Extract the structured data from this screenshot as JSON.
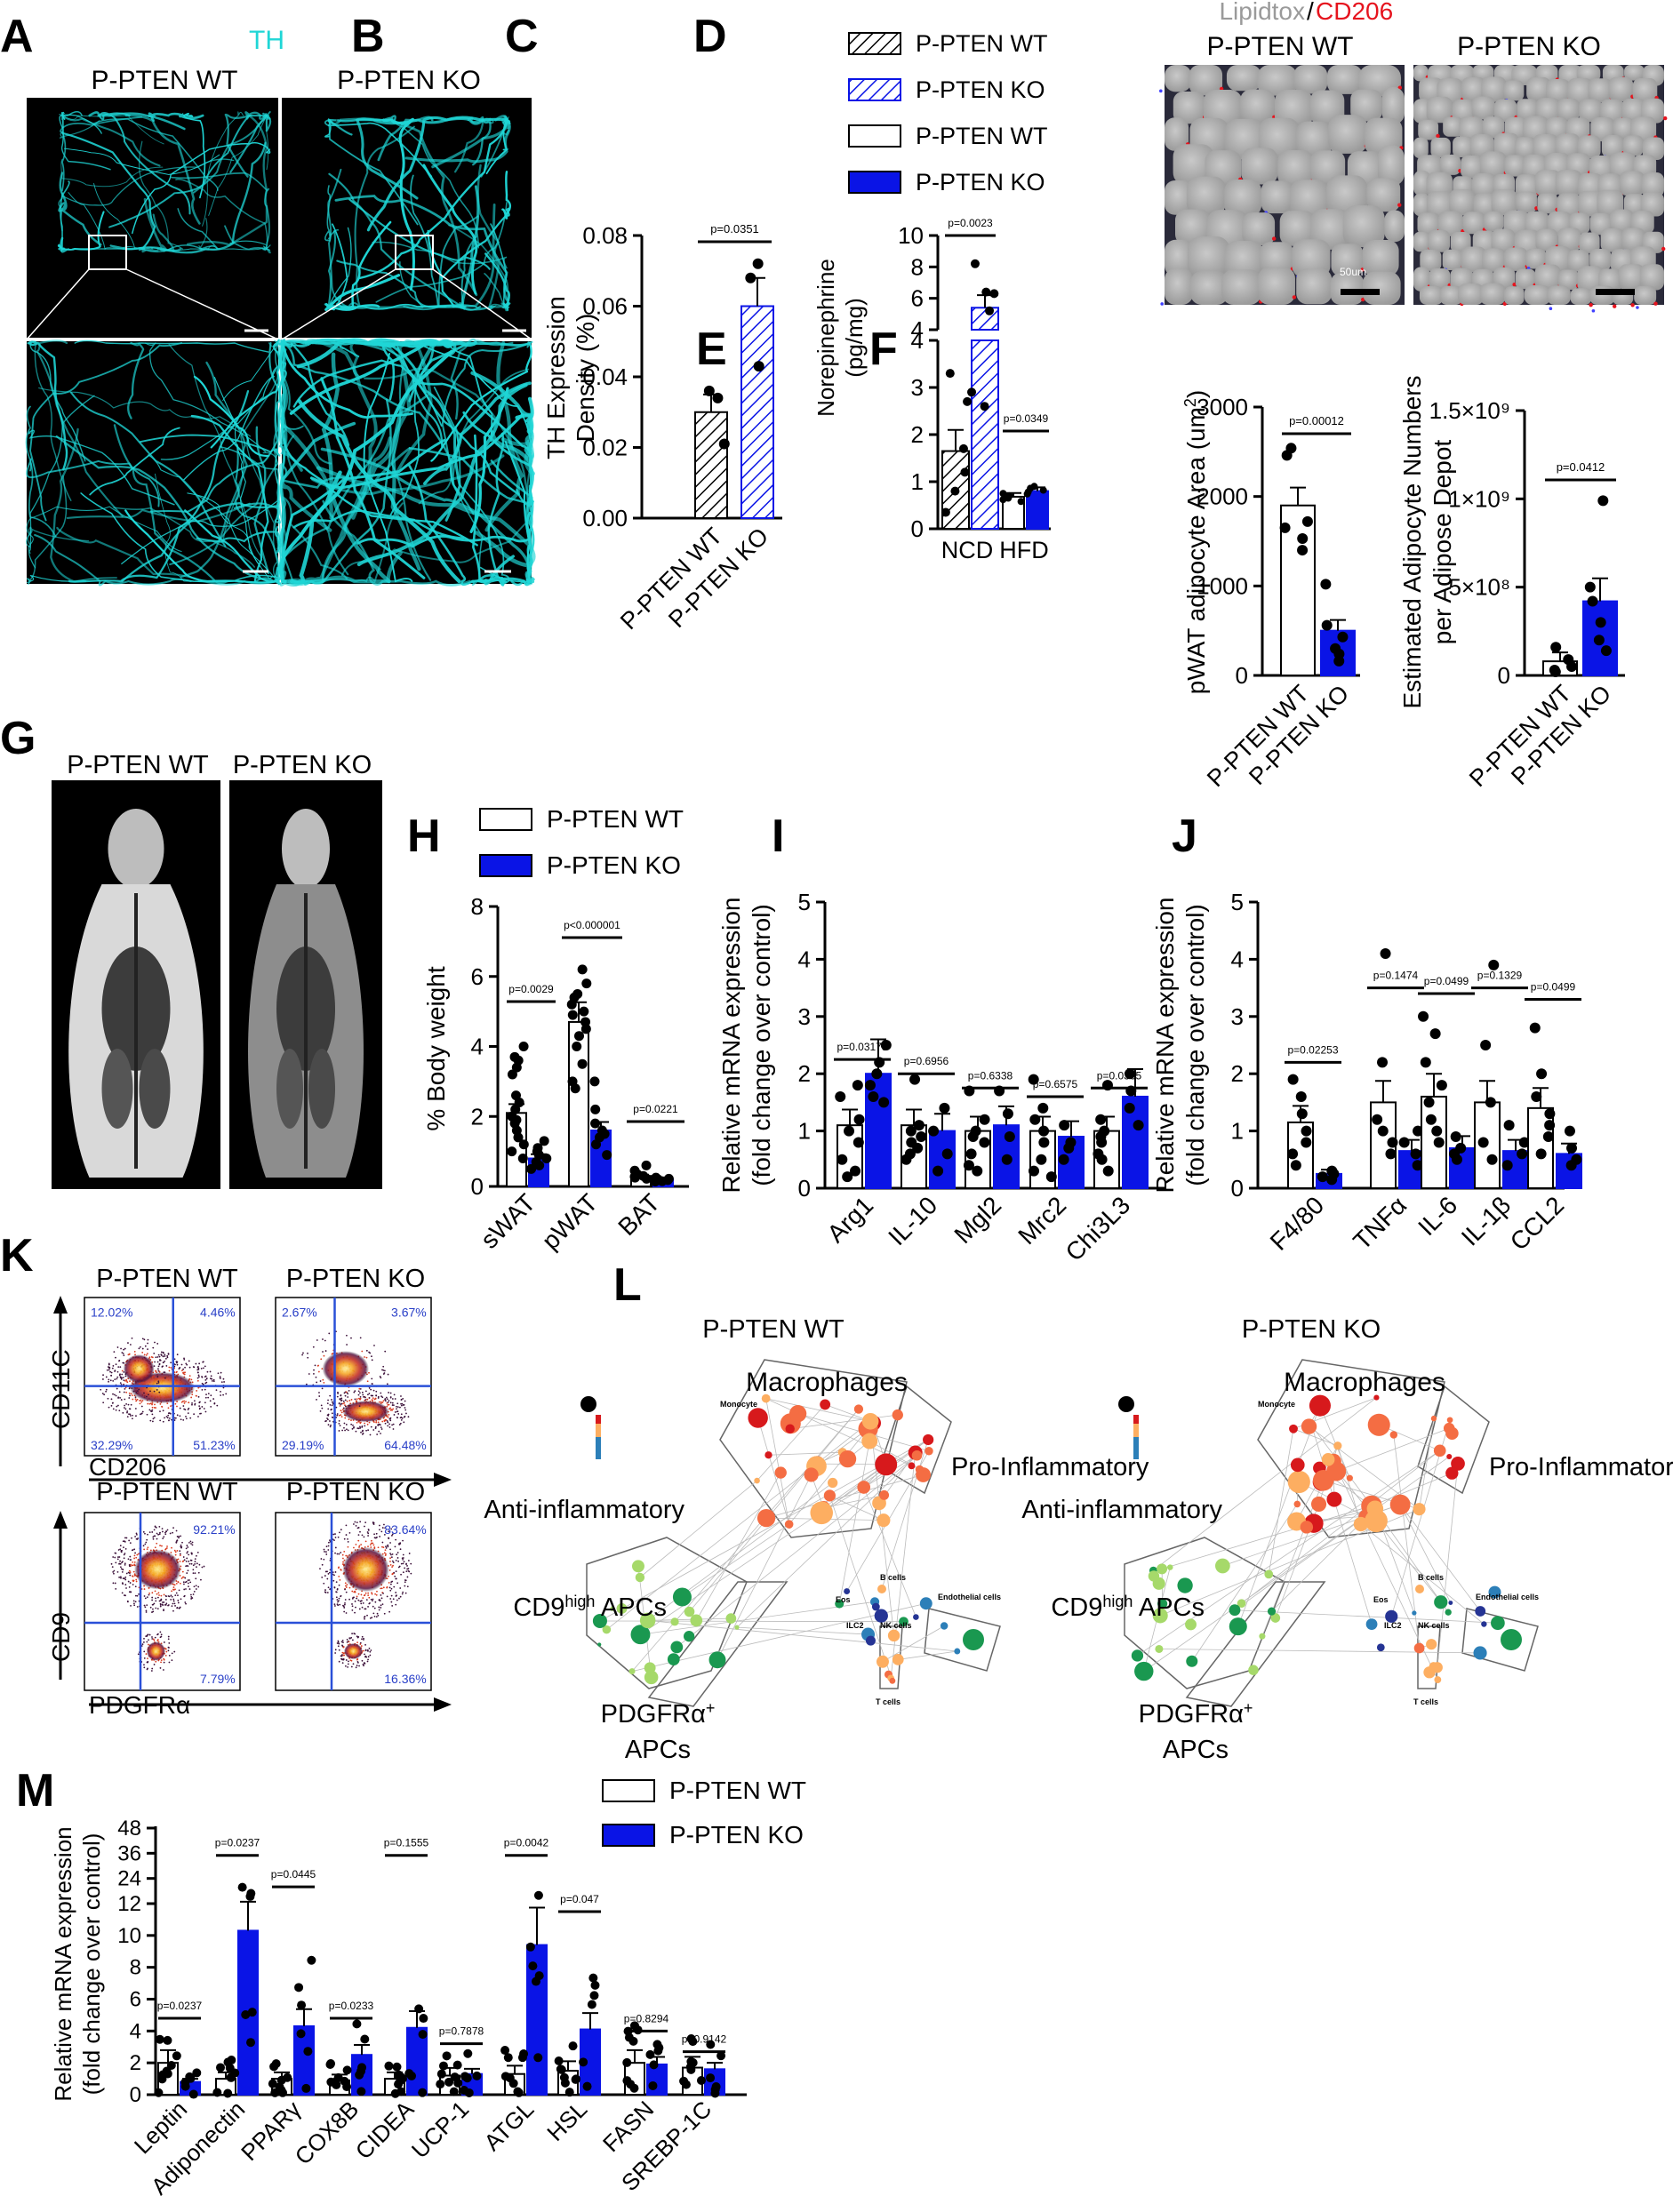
{
  "panel_letters": [
    "A",
    "B",
    "C",
    "D",
    "E",
    "F",
    "G",
    "H",
    "I",
    "J",
    "K",
    "L",
    "M"
  ],
  "colors": {
    "wt": "#ffffff",
    "ko": "#0a14e6",
    "th_stain": "#1fd6d6",
    "cd206": "#e6141e",
    "lipidtox": "#9a9a9a"
  },
  "panelA": {
    "stain": "TH",
    "wt_label": "P-PTEN WT",
    "ko_label": "P-PTEN KO"
  },
  "panelD": {
    "stain_prefix": "Lipidtox",
    "stain_sep": "/",
    "stain_suffix": "CD206",
    "wt_label": "P-PTEN WT",
    "ko_label": "P-PTEN KO",
    "scalebar": "50um"
  },
  "panelG": {
    "wt_label": "P-PTEN WT",
    "ko_label": "P-PTEN KO"
  },
  "panelK": {
    "wt_label": "P-PTEN WT",
    "ko_label": "P-PTEN KO",
    "top": {
      "ylabel": "CD11C",
      "xlabel": "CD206",
      "wt_q": [
        "12.02%",
        "4.46%",
        "32.29%",
        "51.23%"
      ],
      "ko_q": [
        "2.67%",
        "3.67%",
        "29.19%",
        "64.48%"
      ]
    },
    "bottom": {
      "ylabel": "CD9",
      "xlabel": "PDGFRα",
      "wt_q": [
        "92.21%",
        "7.79%"
      ],
      "ko_q": [
        "83.64%",
        "16.36%"
      ]
    }
  },
  "panelL": {
    "wt_title": "P-PTEN WT",
    "ko_title": "P-PTEN KO",
    "macrophages": "Macrophages",
    "pro": "Pro-Inflammatory",
    "anti": "Anti-inflammatory",
    "cd9_main": "CD9",
    "cd9_sup": "high",
    "cd9_rest": " APCs",
    "pdgfra_line1": "PDGFRα",
    "pdgfra_sup": "+",
    "pdgfra_line2": "APCs",
    "small": [
      "Monocyte",
      "B cells",
      "Eos",
      "ILC2",
      "NK cells",
      "Endothelial cells",
      "T cells"
    ]
  },
  "chart_data": [
    {
      "panel": "B",
      "type": "bar",
      "categories": [
        "P-PTEN WT",
        "P-PTEN KO"
      ],
      "values": [
        0.03,
        0.06
      ],
      "ylabel_1": "TH Expression",
      "ylabel_2": "Density (%)",
      "ylim": [
        0,
        0.08
      ],
      "yticks": [
        "0.00",
        "0.02",
        "0.04",
        "0.06",
        "0.08"
      ],
      "pvalue": "p=0.0351"
    },
    {
      "panel": "C",
      "type": "bar",
      "categories": [
        "NCD",
        "HFD"
      ],
      "series": [
        {
          "name": "P-PTEN WT",
          "values": [
            1.65,
            0.68
          ]
        },
        {
          "name": "P-PTEN KO",
          "values": [
            5.4,
            0.8
          ]
        }
      ],
      "legend": [
        "P-PTEN WT",
        "P-PTEN KO",
        "P-PTEN WT",
        "P-PTEN KO"
      ],
      "ylabel_1": "Norepinephrine",
      "ylabel_2": "(pg/mg)",
      "yticks_lower": [
        "0",
        "1",
        "2",
        "3",
        "4"
      ],
      "yticks_upper": [
        "4",
        "6",
        "8",
        "10"
      ],
      "pvalues": [
        "p=0.0023",
        "p=0.0349"
      ]
    },
    {
      "panel": "E",
      "type": "bar",
      "categories": [
        "P-PTEN WT",
        "P-PTEN KO"
      ],
      "values": [
        1900,
        500
      ],
      "ylabel_1": "pWAT adipocyte Area (um",
      "ylabel_sup": "2",
      "ylabel_end": ")",
      "ylim": [
        0,
        3000
      ],
      "yticks": [
        "0",
        "1000",
        "2000",
        "3000"
      ],
      "pvalue": "p=0.00012"
    },
    {
      "panel": "F",
      "type": "bar",
      "categories": [
        "P-PTEN WT",
        "P-PTEN KO"
      ],
      "values": [
        80000000,
        420000000
      ],
      "ylabel_1": "Estimated Adipocyte Numbers",
      "ylabel_2": "per Adipose Depot",
      "ylim": [
        0,
        1500000000
      ],
      "yticks": [
        "0",
        "5×10⁸",
        "1×10⁹",
        "1.5×10⁹"
      ],
      "pvalue": "p=0.0412"
    },
    {
      "panel": "H",
      "type": "bar",
      "categories": [
        "sWAT",
        "pWAT",
        "BAT"
      ],
      "series": [
        {
          "name": "P-PTEN WT",
          "values": [
            2.1,
            4.7,
            0.3
          ]
        },
        {
          "name": "P-PTEN KO",
          "values": [
            0.8,
            1.6,
            0.2
          ]
        }
      ],
      "ylabel": "% Body weight",
      "ylim": [
        0,
        8
      ],
      "yticks": [
        "0",
        "2",
        "4",
        "6",
        "8"
      ],
      "pvalues": [
        "p=0.0029",
        "p<0.000001",
        "p=0.0221"
      ]
    },
    {
      "panel": "I",
      "type": "bar",
      "categories": [
        "Arg1",
        "IL-10",
        "Mgl2",
        "Mrc2",
        "Chi3L3"
      ],
      "series": [
        {
          "name": "P-PTEN WT",
          "values": [
            1.1,
            1.1,
            1.0,
            1.0,
            1.0
          ]
        },
        {
          "name": "P-PTEN KO",
          "values": [
            2.0,
            1.0,
            1.1,
            0.9,
            1.6
          ]
        }
      ],
      "ylabel_1": "Relative mRNA expression",
      "ylabel_2": "(fold change over control)",
      "ylim": [
        0,
        5
      ],
      "yticks": [
        "0",
        "1",
        "2",
        "3",
        "4",
        "5"
      ],
      "pvalues": [
        "p=0.03175",
        "p=0.6956",
        "p=0.6338",
        "p=0.6575",
        "p=0.0385"
      ]
    },
    {
      "panel": "J",
      "type": "bar",
      "categories": [
        "F4/80",
        "TNFα",
        "IL-6",
        "IL-1β",
        "CCL2"
      ],
      "series": [
        {
          "name": "P-PTEN WT",
          "values": [
            1.15,
            1.5,
            1.6,
            1.5,
            1.4
          ]
        },
        {
          "name": "P-PTEN KO",
          "values": [
            0.25,
            0.65,
            0.7,
            0.65,
            0.6
          ]
        }
      ],
      "ylabel_1": "Relative mRNA expression",
      "ylabel_2": "(fold change over control)",
      "ylim": [
        0,
        5
      ],
      "yticks": [
        "0",
        "1",
        "2",
        "3",
        "4",
        "5"
      ],
      "pvalues": [
        "p=0.02253",
        "p=0.1474",
        "p=0.0499",
        "p=0.1329",
        "p=0.0499"
      ]
    },
    {
      "panel": "M",
      "type": "bar",
      "categories": [
        "Leptin",
        "Adiponectin",
        "PPARγ",
        "COX8B",
        "CIDEA",
        "UCP-1",
        "ATGL",
        "HSL",
        "FASN",
        "SREBP-1C"
      ],
      "series": [
        {
          "name": "P-PTEN WT",
          "values": [
            2.0,
            1.0,
            1.0,
            0.9,
            1.0,
            1.2,
            1.3,
            1.5,
            2.0,
            1.7
          ]
        },
        {
          "name": "P-PTEN KO",
          "values": [
            0.8,
            10.3,
            4.3,
            2.5,
            4.2,
            1.3,
            9.4,
            4.1,
            1.9,
            1.6
          ]
        }
      ],
      "ylabel_1": "Relative mRNA expression",
      "ylabel_2": "(fold change over control)",
      "yticks": [
        "0",
        "2",
        "4",
        "6",
        "8",
        "10",
        "12",
        "24",
        "36",
        "48"
      ],
      "pvalues": [
        "p=0.0237",
        "p=0.0237",
        "p=0.0445",
        "p=0.0233",
        "p=0.1555",
        "p=0.7878",
        "p=0.0042",
        "p=0.047",
        "p=0.8294",
        "p=0.9142"
      ]
    }
  ]
}
